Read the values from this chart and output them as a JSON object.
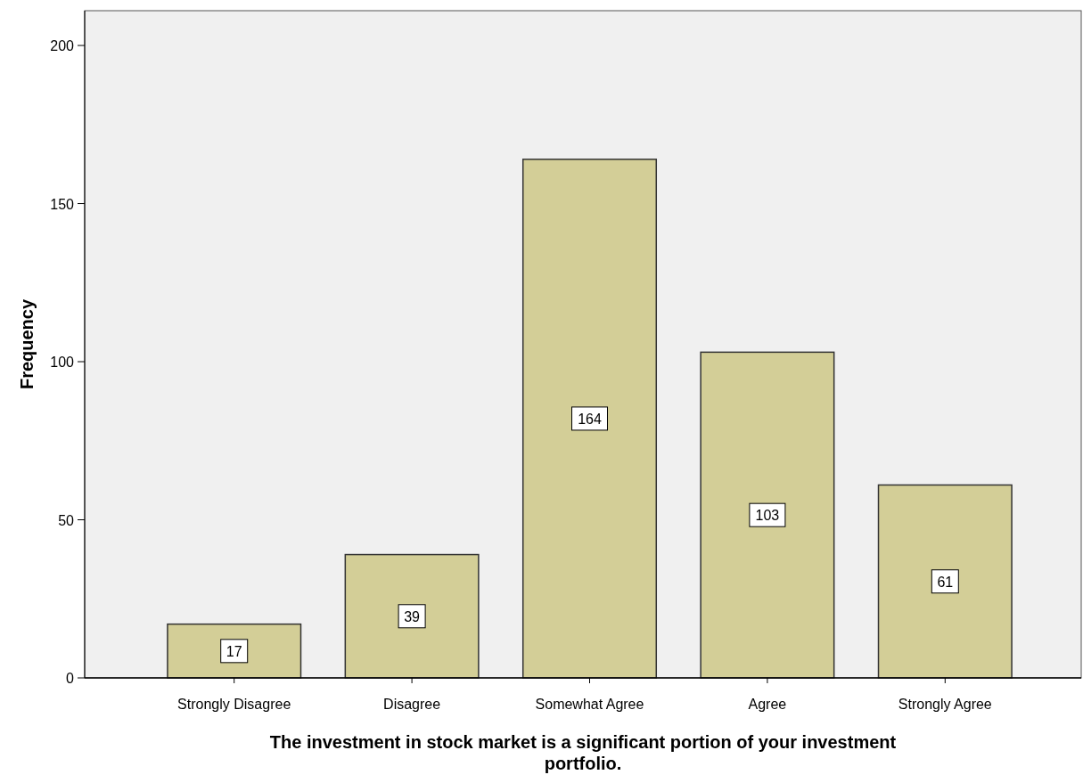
{
  "chart_data": {
    "type": "bar",
    "xlabel": "The investment in stock market is a significant portion of your investment portfolio.",
    "ylabel": "Frequency",
    "categories": [
      "Strongly Disagree",
      "Disagree",
      "Somewhat Agree",
      "Agree",
      "Strongly Agree"
    ],
    "values": [
      17,
      39,
      164,
      103,
      61
    ],
    "color": "#d3ce97",
    "ylim": [
      0,
      211
    ],
    "yticks": [
      0,
      50,
      100,
      150,
      200
    ],
    "data_labels": true,
    "grid": false
  }
}
